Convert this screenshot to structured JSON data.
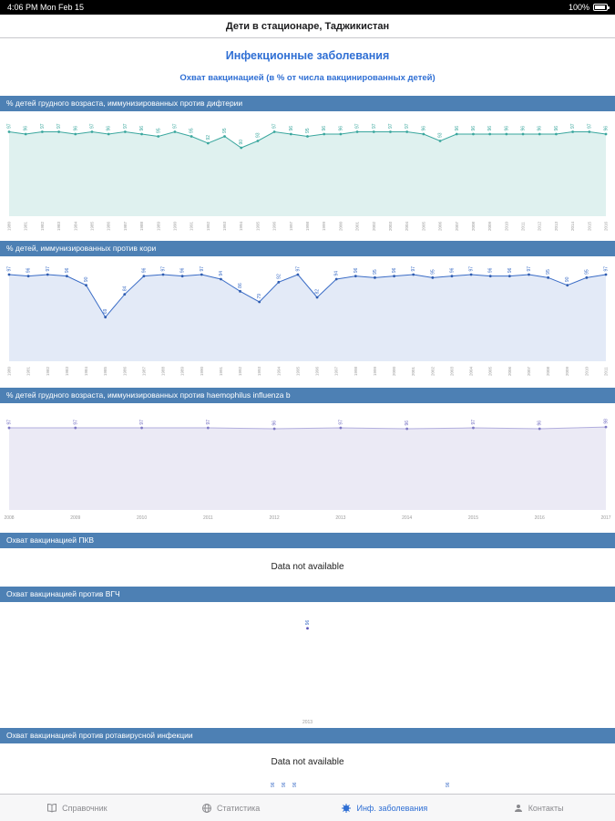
{
  "status_bar": {
    "left": "4:06 PM   Mon Feb 15",
    "battery": "100%"
  },
  "nav": {
    "title": "Дети в стационаре, Таджикистан"
  },
  "page": {
    "title": "Инфекционные заболевания",
    "subtitle": "Охват вакцинацией (в % от числа вакцинированных детей)"
  },
  "colors": {
    "accent": "#2f6fd4",
    "header_bar": "#4d80b4"
  },
  "charts": [
    {
      "title": "% детей грудного возраста, иммунизированных против дифтерии",
      "chart_data": {
        "type": "area",
        "x": [
          "1980",
          "1981",
          "1982",
          "1983",
          "1984",
          "1985",
          "1986",
          "1987",
          "1988",
          "1989",
          "1990",
          "1991",
          "1992",
          "1993",
          "1994",
          "1995",
          "1996",
          "1997",
          "1998",
          "1999",
          "2000",
          "2001",
          "2002",
          "2003",
          "2004",
          "2005",
          "2006",
          "2007",
          "2008",
          "2009",
          "2010",
          "2011",
          "2012",
          "2013",
          "2014",
          "2015",
          "2016"
        ],
        "values": [
          97,
          96,
          97,
          97,
          96,
          97,
          96,
          97,
          96,
          95,
          97,
          95,
          92,
          95,
          90,
          93,
          97,
          96,
          95,
          96,
          96,
          97,
          97,
          97,
          97,
          96,
          93,
          96,
          96,
          96,
          96,
          96,
          96,
          96,
          97,
          97,
          96
        ],
        "ylim": [
          60,
          100
        ],
        "rotated_x": true,
        "line_color": "#3aa79e",
        "fill_color": "rgba(58,167,158,0.16)",
        "point_color": "#3aa79e",
        "label_color": "#3aa79e",
        "tick_color": "#9a9a9a"
      }
    },
    {
      "title": "% детей, иммунизированных против кори",
      "chart_data": {
        "type": "area",
        "x": [
          "1980",
          "1981",
          "1982",
          "1983",
          "1984",
          "1985",
          "1986",
          "1987",
          "1988",
          "1989",
          "1990",
          "1991",
          "1992",
          "1993",
          "1994",
          "1995",
          "1996",
          "1997",
          "1998",
          "1999",
          "2000",
          "2001",
          "2002",
          "2003",
          "2004",
          "2005",
          "2006",
          "2007",
          "2008",
          "2009",
          "2010",
          "2011"
        ],
        "values": [
          97,
          96,
          97,
          96,
          90,
          69,
          84,
          96,
          97,
          96,
          97,
          94,
          86,
          79,
          92,
          97,
          82,
          94,
          96,
          95,
          96,
          97,
          95,
          96,
          97,
          96,
          96,
          97,
          95,
          90,
          95,
          97
        ],
        "ylim": [
          40,
          100
        ],
        "rotated_x": true,
        "line_color": "#3a6cc6",
        "fill_color": "rgba(58,108,198,0.14)",
        "point_color": "#2f5cb0",
        "label_color": "#3a6cc6",
        "tick_color": "#9a9a9a"
      }
    },
    {
      "title": "% детей грудного возраста, иммунизированных против haemophilus influenza b",
      "chart_data": {
        "type": "area",
        "x": [
          "2008",
          "2009",
          "2010",
          "2011",
          "2012",
          "2013",
          "2014",
          "2015",
          "2016",
          "2017"
        ],
        "values": [
          97,
          97,
          97,
          97,
          96,
          97,
          96,
          97,
          96,
          98
        ],
        "ylim": [
          0,
          110
        ],
        "rotated_x": false,
        "line_color": "#b2aede",
        "fill_color": "rgba(142,138,200,0.18)",
        "point_color": "#7d78c4",
        "label_color": "#6f6ac0",
        "tick_color": "#9a9a9a"
      }
    },
    {
      "title": "Охват вакцинацией ПКВ",
      "message": "Data not available"
    },
    {
      "title": "Охват вакцинацией против ВГЧ",
      "chart_data": {
        "type": "scatter",
        "x": [
          "2013"
        ],
        "values": [
          96
        ],
        "ylim": [
          0,
          110
        ],
        "rotated_x": false,
        "line_color": "#6f6ac0",
        "point_color": "#5b54b8",
        "label_color": "#3a6cc6",
        "tick_color": "#9a9a9a"
      }
    },
    {
      "title": "Охват вакцинацией против ротавирусной инфекции",
      "message": "Data not available"
    }
  ],
  "partial_chart": {
    "color": "#3a6cc6",
    "labels": [
      {
        "text": "96",
        "left_pct": 44.0
      },
      {
        "text": "96",
        "left_pct": 45.8
      },
      {
        "text": "96",
        "left_pct": 47.6
      },
      {
        "text": "96",
        "left_pct": 72.5
      }
    ]
  },
  "tab_bar": {
    "items": [
      {
        "label": "Справочник",
        "active": false
      },
      {
        "label": "Статистика",
        "active": false
      },
      {
        "label": "Инф. заболевания",
        "active": true
      },
      {
        "label": "Контакты",
        "active": false
      }
    ]
  }
}
